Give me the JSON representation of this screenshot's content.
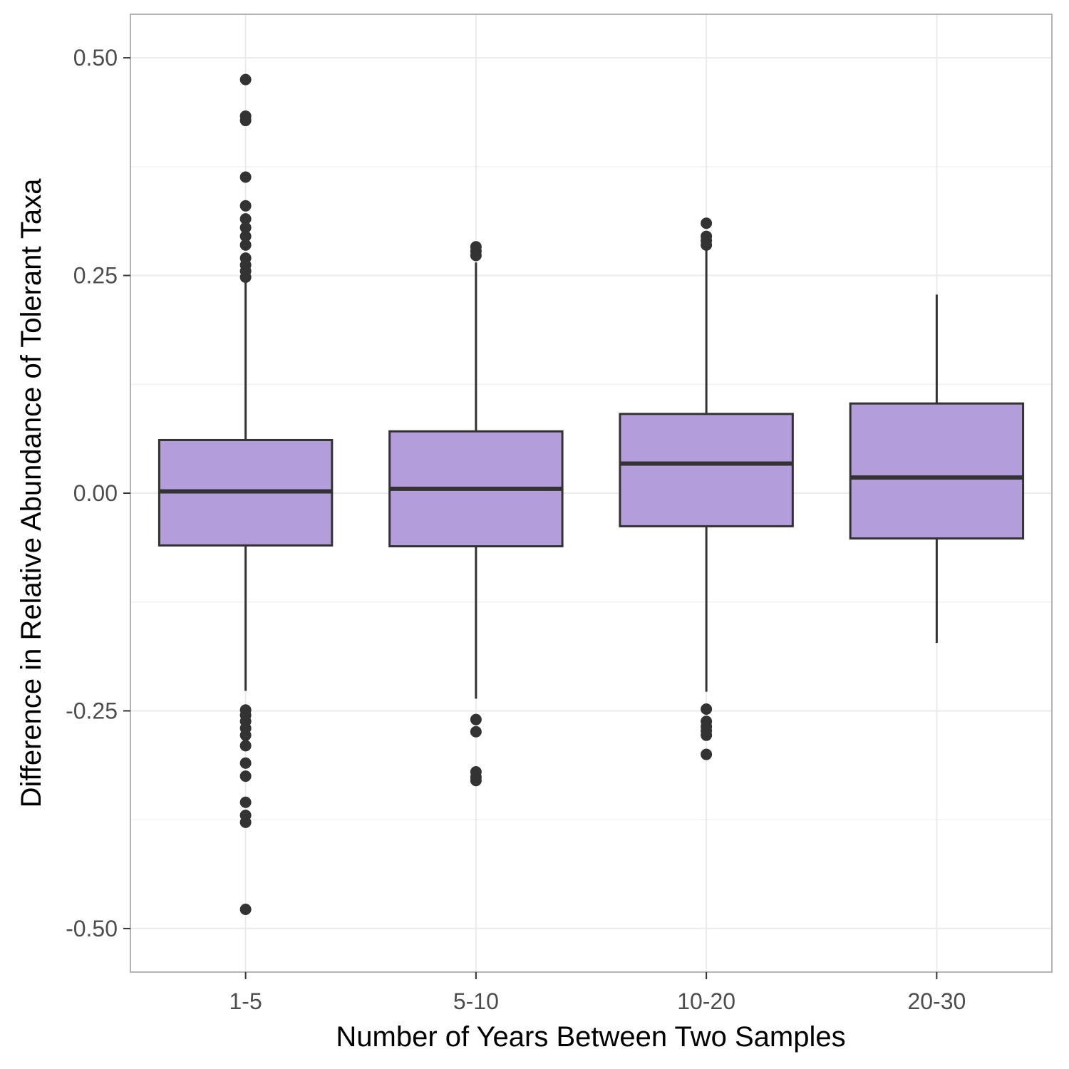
{
  "chart_data": {
    "type": "box",
    "title": "",
    "xlabel": "Number of Years Between Two Samples",
    "ylabel": "Difference in Relative Abundance of Tolerant Taxa",
    "ylim": [
      -0.55,
      0.55
    ],
    "y_ticks": [
      -0.5,
      -0.25,
      0.0,
      0.25,
      0.5
    ],
    "y_tick_labels": [
      "-0.50",
      "-0.25",
      "0.00",
      "0.25",
      "0.50"
    ],
    "categories": [
      "1-5",
      "5-10",
      "10-20",
      "20-30"
    ],
    "grid": true,
    "legend": "none",
    "colors": {
      "box_fill": "#b39ddb",
      "box_stroke": "#333333",
      "panel_border": "#b3b3b3",
      "grid": "#ebebeb"
    },
    "boxes": [
      {
        "category": "1-5",
        "whisker_low": -0.227,
        "q1": -0.06,
        "median": 0.002,
        "q3": 0.061,
        "whisker_high": 0.245,
        "outliers": [
          0.475,
          0.433,
          0.428,
          0.363,
          0.33,
          0.315,
          0.305,
          0.295,
          0.285,
          0.27,
          0.262,
          0.255,
          0.248,
          -0.249,
          -0.255,
          -0.262,
          -0.27,
          -0.278,
          -0.29,
          -0.31,
          -0.325,
          -0.355,
          -0.37,
          -0.378,
          -0.478
        ]
      },
      {
        "category": "5-10",
        "whisker_low": -0.236,
        "q1": -0.061,
        "median": 0.005,
        "q3": 0.071,
        "whisker_high": 0.265,
        "outliers": [
          0.283,
          0.278,
          0.273,
          -0.26,
          -0.274,
          -0.32,
          -0.326,
          -0.33
        ]
      },
      {
        "category": "10-20",
        "whisker_low": -0.228,
        "q1": -0.038,
        "median": 0.034,
        "q3": 0.091,
        "whisker_high": 0.285,
        "outliers": [
          0.31,
          0.295,
          0.29,
          0.285,
          -0.248,
          -0.262,
          -0.268,
          -0.273,
          -0.278,
          -0.3
        ]
      },
      {
        "category": "20-30",
        "whisker_low": -0.172,
        "q1": -0.052,
        "median": 0.018,
        "q3": 0.103,
        "whisker_high": 0.228,
        "outliers": []
      }
    ]
  }
}
